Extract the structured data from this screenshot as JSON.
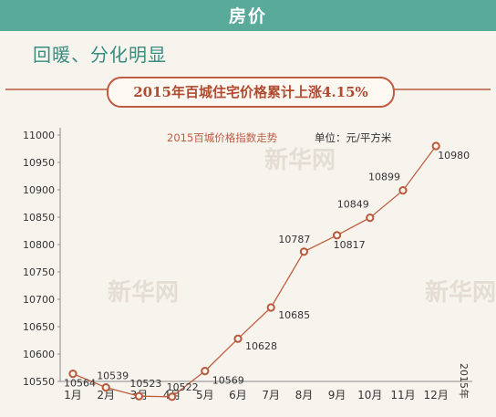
{
  "header": {
    "title": "房价"
  },
  "subtitle": "回暖、分化明显",
  "headline": "2015年百城住宅价格累计上涨4.15%",
  "watermark": "新华网",
  "colors": {
    "banner": "#5aaa9c",
    "accent": "#c25b43",
    "line": "#c06040",
    "marker": "#b85838"
  },
  "chart_data": {
    "type": "line",
    "title": "2015百城价格指数走势",
    "unit_label": "单位：元/平方米",
    "year_label": "2015年",
    "categories": [
      "1月",
      "2月",
      "3月",
      "4月",
      "5月",
      "6月",
      "7月",
      "8月",
      "9月",
      "10月",
      "11月",
      "12月"
    ],
    "series": [
      {
        "values": [
          10564,
          10539,
          10523,
          10522,
          10569,
          10628,
          10685,
          10787,
          10817,
          10849,
          10899,
          10980
        ]
      }
    ],
    "data_labels": [
      "10564",
      "10539",
      "10523",
      "10522",
      "10569",
      "10628",
      "10685",
      "10787",
      "10817",
      "10849",
      "10899",
      "10980"
    ],
    "yticks": [
      10550,
      10600,
      10650,
      10700,
      10750,
      10800,
      10850,
      10900,
      10950,
      11000
    ],
    "ytick_labels": [
      "10550",
      "10600",
      "10650",
      "10700",
      "10750",
      "10800",
      "10850",
      "10900",
      "10950",
      "11000"
    ],
    "ylim": [
      10550,
      11000
    ],
    "grid": false
  }
}
